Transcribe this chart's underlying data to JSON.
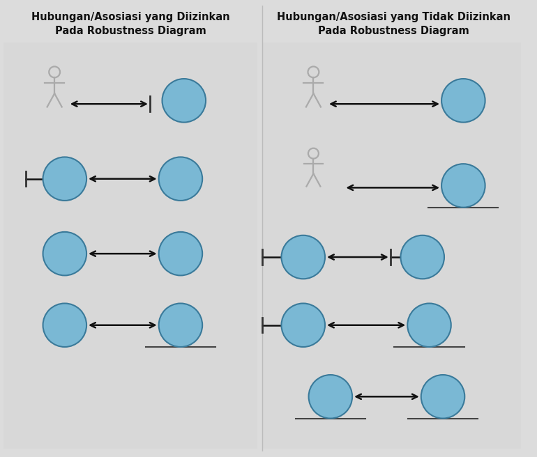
{
  "bg_color": "#dcdcdc",
  "title_left": "Hubungan/Asosiasi yang Diizinkan\nPada Robustness Diagram",
  "title_right": "Hubungan/Asosiasi yang Tidak Diizinkan\nPada Robustness Diagram",
  "circle_color": "#7ab8d4",
  "circle_edge": "#3a7a9a",
  "actor_color": "#aaaaaa",
  "arrow_color": "#111111",
  "line_color": "#444444",
  "tmark_color": "#333333",
  "divider_color": "#bbbbbb",
  "panel_bg": "#d8d8d8"
}
